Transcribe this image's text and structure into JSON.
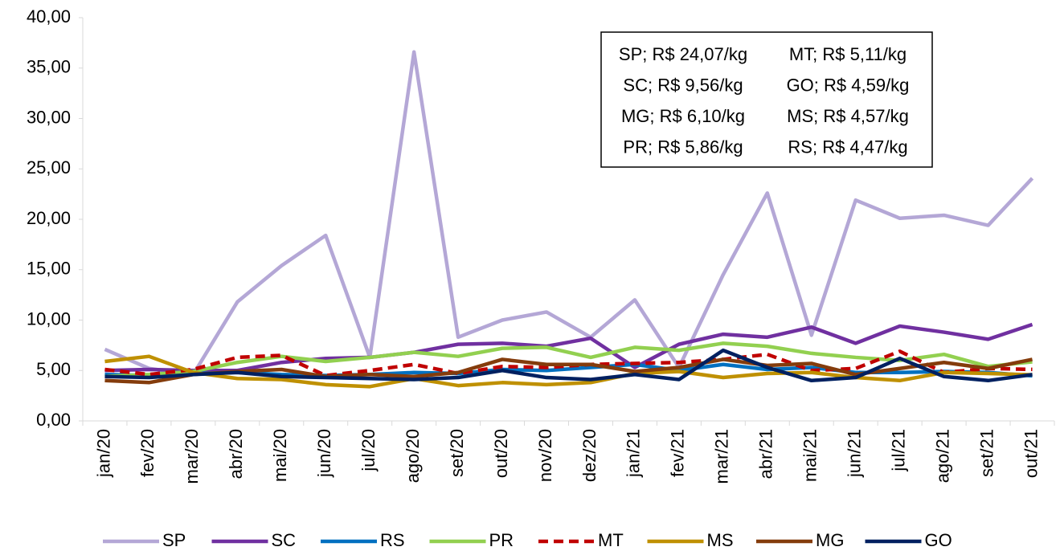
{
  "chart_data": {
    "type": "line",
    "categories": [
      "jan/20",
      "fev/20",
      "mar/20",
      "abr/20",
      "mai/20",
      "jun/20",
      "jul/20",
      "ago/20",
      "set/20",
      "out/20",
      "nov/20",
      "dez/20",
      "jan/21",
      "fev/21",
      "mar/21",
      "abr/21",
      "mai/21",
      "jun/21",
      "jul/21",
      "ago/21",
      "set/21",
      "out/21"
    ],
    "series": [
      {
        "name": "SP",
        "color": "#b4a7d6",
        "values": [
          7.1,
          5.2,
          4.6,
          11.8,
          15.4,
          18.4,
          6.3,
          36.6,
          8.3,
          10.0,
          10.8,
          8.3,
          12.0,
          5.3,
          14.5,
          22.6,
          8.5,
          21.9,
          20.1,
          20.4,
          19.4,
          24.07
        ]
      },
      {
        "name": "SC",
        "color": "#7030a0",
        "values": [
          5.0,
          5.1,
          5.0,
          5.0,
          5.8,
          6.2,
          6.3,
          6.8,
          7.6,
          7.7,
          7.4,
          8.2,
          5.3,
          7.6,
          8.6,
          8.3,
          9.3,
          7.7,
          9.4,
          8.8,
          8.1,
          9.56
        ]
      },
      {
        "name": "RS",
        "color": "#0070c0",
        "values": [
          4.6,
          4.5,
          4.7,
          4.8,
          4.6,
          4.5,
          4.6,
          4.8,
          4.7,
          5.1,
          5.0,
          5.3,
          5.6,
          5.0,
          5.6,
          5.1,
          5.3,
          4.8,
          4.8,
          4.9,
          4.8,
          4.47
        ]
      },
      {
        "name": "PR",
        "color": "#92d050",
        "values": [
          4.4,
          4.6,
          4.9,
          5.8,
          6.4,
          5.9,
          6.3,
          6.8,
          6.4,
          7.2,
          7.3,
          6.3,
          7.3,
          7.0,
          7.7,
          7.4,
          6.7,
          6.3,
          6.0,
          6.6,
          5.4,
          5.86
        ]
      },
      {
        "name": "MT",
        "color": "#c00000",
        "dashed": true,
        "values": [
          5.1,
          4.6,
          5.1,
          6.3,
          6.5,
          4.5,
          5.0,
          5.6,
          4.7,
          5.4,
          5.3,
          5.6,
          5.7,
          5.8,
          6.1,
          6.6,
          5.0,
          5.2,
          6.9,
          4.8,
          5.2,
          5.11
        ]
      },
      {
        "name": "MS",
        "color": "#bf9000",
        "values": [
          5.9,
          6.4,
          4.8,
          4.2,
          4.1,
          3.6,
          3.4,
          4.2,
          3.5,
          3.8,
          3.6,
          3.8,
          4.7,
          4.9,
          4.3,
          4.7,
          4.8,
          4.3,
          4.0,
          4.8,
          4.7,
          4.57
        ]
      },
      {
        "name": "MG",
        "color": "#843c0c",
        "values": [
          4.0,
          3.8,
          4.6,
          4.9,
          5.1,
          4.4,
          4.6,
          4.4,
          4.8,
          6.1,
          5.6,
          5.6,
          4.9,
          5.3,
          6.1,
          5.5,
          5.7,
          4.6,
          5.2,
          5.8,
          5.2,
          6.1
        ]
      },
      {
        "name": "GO",
        "color": "#002060",
        "values": [
          4.4,
          4.3,
          4.6,
          4.8,
          4.4,
          4.3,
          4.2,
          4.1,
          4.3,
          5.0,
          4.3,
          4.1,
          4.6,
          4.1,
          7.0,
          5.3,
          4.0,
          4.3,
          6.2,
          4.4,
          4.0,
          4.59
        ]
      }
    ],
    "ylim": [
      0,
      40
    ],
    "yticks": [
      {
        "value": 0,
        "label": "0,00"
      },
      {
        "value": 5,
        "label": "5,00"
      },
      {
        "value": 10,
        "label": "10,00"
      },
      {
        "value": 15,
        "label": "15,00"
      },
      {
        "value": 20,
        "label": "20,00"
      },
      {
        "value": 25,
        "label": "25,00"
      },
      {
        "value": 30,
        "label": "30,00"
      },
      {
        "value": 35,
        "label": "35,00"
      },
      {
        "value": 40,
        "label": "40,00"
      }
    ],
    "grid": false,
    "legend": "bottom",
    "annotations": [
      [
        "SP; R$ 24,07/kg",
        "MT; R$ 5,11/kg"
      ],
      [
        "SC; R$ 9,56/kg",
        "GO; R$ 4,59/kg"
      ],
      [
        "MG; R$ 6,10/kg",
        "MS; R$ 4,57/kg"
      ],
      [
        "PR; R$ 5,86/kg",
        "RS; R$ 4,47/kg"
      ]
    ]
  }
}
